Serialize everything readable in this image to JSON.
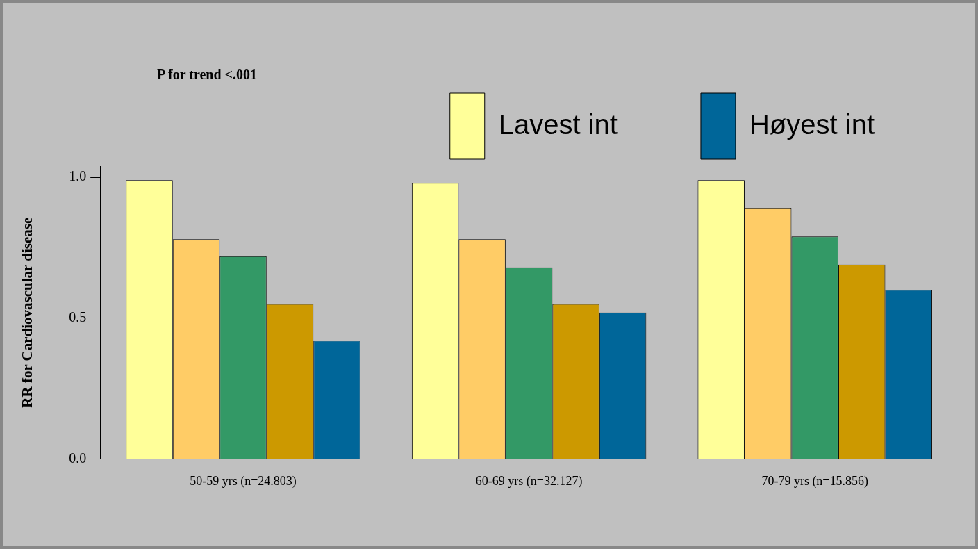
{
  "chart_data": {
    "type": "bar",
    "ylabel": "RR for Cardiovascular disease",
    "categories": [
      "50-59 yrs (n=24.803)",
      "60-69 yrs (n=32.127)",
      "70-79 yrs (n=15.856)"
    ],
    "series": [
      {
        "name": "Lavest int",
        "color": "#ffff99",
        "values": [
          0.99,
          0.98,
          0.99
        ]
      },
      {
        "color": "#ffcc66",
        "values": [
          0.78,
          0.78,
          0.89
        ]
      },
      {
        "color": "#339966",
        "values": [
          0.72,
          0.68,
          0.79
        ]
      },
      {
        "color": "#cc9900",
        "values": [
          0.55,
          0.55,
          0.69
        ]
      },
      {
        "name": "Høyest int",
        "color": "#006699",
        "values": [
          0.42,
          0.52,
          0.6
        ]
      }
    ],
    "ylim": [
      0,
      1.04
    ],
    "yticks": [
      {
        "value": 0,
        "label": "0.0"
      },
      {
        "value": 0.5,
        "label": "0.5"
      },
      {
        "value": 1,
        "label": "1.0"
      }
    ],
    "grid": false,
    "legend": "top right",
    "annotations": [
      "P for trend <.001"
    ]
  }
}
